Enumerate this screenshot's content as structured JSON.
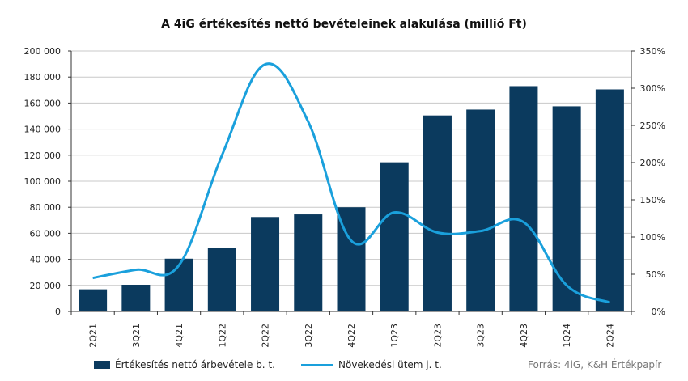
{
  "chart_data": {
    "type": "bar",
    "title": "A 4iG értékesítés nettó bevételeinek  alakulása (millió Ft)",
    "categories": [
      "2Q21",
      "3Q21",
      "4Q21",
      "1Q22",
      "2Q22",
      "3Q22",
      "4Q22",
      "1Q23",
      "2Q23",
      "3Q23",
      "4Q23",
      "1Q24",
      "2Q24"
    ],
    "series": [
      {
        "name": "Értékesítés nettó árbevétele b. t.",
        "type": "bar",
        "axis": "left",
        "color": "#0b3a5e",
        "values": [
          17000,
          20500,
          40500,
          49000,
          72500,
          74500,
          80000,
          114500,
          150500,
          155000,
          173000,
          157500,
          170500
        ]
      },
      {
        "name": "Növekedési ütem j. t.",
        "type": "line",
        "axis": "right",
        "color": "#1aa0dc",
        "values": [
          45,
          56,
          62,
          210,
          332,
          255,
          95,
          133,
          106,
          108,
          120,
          35,
          12
        ]
      }
    ],
    "ylim_left": [
      0,
      200000
    ],
    "yticks_left": [
      "0",
      "20 000",
      "40 000",
      "60 000",
      "80 000",
      "100 000",
      "120 000",
      "140 000",
      "160 000",
      "180 000",
      "200 000"
    ],
    "ylim_right": [
      0,
      350
    ],
    "yticks_right": [
      "0%",
      "50%",
      "100%",
      "150%",
      "200%",
      "250%",
      "300%",
      "350%"
    ],
    "grid": true,
    "legend_position": "bottom-left",
    "source": "Forrás: 4iG, K&H Értékpapír"
  }
}
